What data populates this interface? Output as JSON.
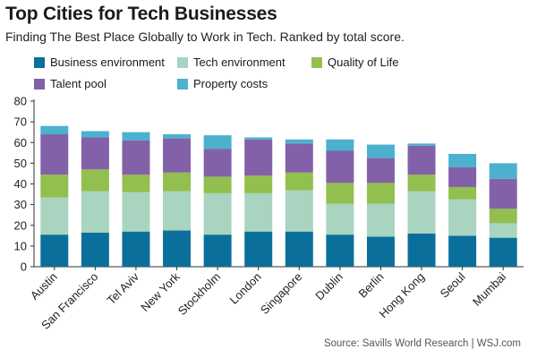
{
  "title": "Top Cities for Tech Businesses",
  "subtitle": "Finding The Best Place Globally to Work in Tech. Ranked by total score.",
  "source": "Source: Savills World Research  |  WSJ.com",
  "chart_data": {
    "type": "bar",
    "stacked": true,
    "categories": [
      "Austin",
      "San Francisco",
      "Tel Aviv",
      "New York",
      "Stockholm",
      "London",
      "Singapore",
      "Dublin",
      "Berlin",
      "Hong Kong",
      "Seoul",
      "Mumbai"
    ],
    "series": [
      {
        "name": "Business environment",
        "color": "#0b6f9c",
        "values": [
          15.5,
          16.5,
          17,
          17.5,
          15.5,
          17,
          17,
          15.5,
          14.5,
          16,
          15,
          14
        ]
      },
      {
        "name": "Tech environment",
        "color": "#a9d4c0",
        "values": [
          18,
          20,
          19,
          19,
          20,
          18.5,
          20,
          15,
          16,
          20.5,
          17.5,
          7
        ]
      },
      {
        "name": "Quality of Life",
        "color": "#92bf4e",
        "values": [
          11,
          10.5,
          8.5,
          9,
          8,
          8.5,
          8.5,
          10,
          10,
          8,
          6,
          7
        ]
      },
      {
        "name": "Talent pool",
        "color": "#8361a8",
        "values": [
          19.5,
          15.5,
          16.5,
          16.5,
          13.5,
          17.5,
          14,
          15.5,
          12,
          14,
          9.5,
          14.5
        ]
      },
      {
        "name": "Property costs",
        "color": "#4bb1cf",
        "values": [
          4,
          3,
          4,
          2,
          6.5,
          1,
          2,
          5.5,
          6.5,
          1,
          6.5,
          7.5
        ]
      }
    ],
    "yticks": [
      "0",
      "10",
      "20",
      "30",
      "40",
      "50",
      "60",
      "70",
      "80"
    ],
    "ylim": [
      0,
      80
    ],
    "xlabel": "",
    "ylabel": "",
    "grid": false,
    "legend_position": "top"
  }
}
